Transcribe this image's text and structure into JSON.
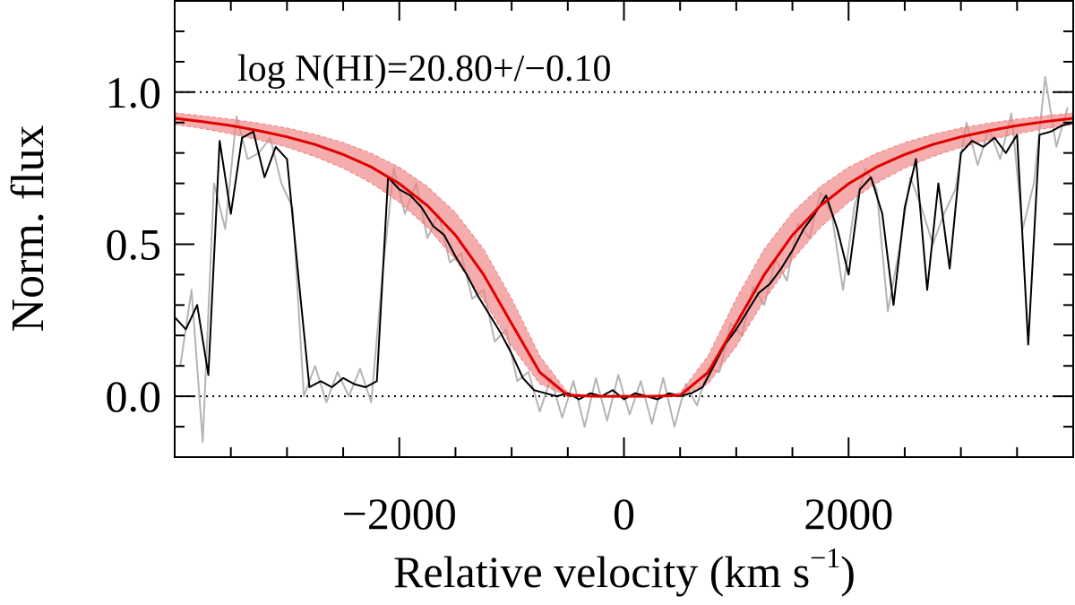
{
  "chart_data": {
    "type": "line",
    "annotation": "log N(HI)=20.80+/−0.10",
    "ylabel": "Norm. flux",
    "xlabel": [
      "Relative velocity (km s",
      "−1",
      ")"
    ],
    "xlim": [
      -4000,
      4000
    ],
    "ylim": [
      -0.2,
      1.3
    ],
    "xticks": [
      {
        "value": -2000,
        "label": "−2000"
      },
      0,
      2000
    ],
    "yticks": [
      {
        "value": 0,
        "label": "0.0"
      },
      {
        "value": 0.5,
        "label": "0.5"
      },
      {
        "value": 1,
        "label": "1.0"
      }
    ],
    "xminorticks": [
      -3500,
      -3000,
      -2500,
      -1500,
      -1000,
      -500,
      500,
      1000,
      1500,
      2500,
      3000,
      3500
    ],
    "yminorticks": [
      -0.1,
      0.1,
      0.2,
      0.3,
      0.4,
      0.6,
      0.7,
      0.8,
      0.9,
      1.1,
      1.2
    ],
    "hlines": [
      0,
      1
    ],
    "series": [
      {
        "color": "#b4b4b4",
        "x": [
          -3950,
          -3850,
          -3750,
          -3650,
          -3550,
          -3450,
          -3350,
          -3250,
          -3150,
          -3050,
          -2950,
          -2850,
          -2750,
          -2650,
          -2550,
          -2450,
          -2350,
          -2250,
          -2150,
          -2050,
          -1950,
          -1850,
          -1750,
          -1650,
          -1550,
          -1450,
          -1350,
          -1250,
          -1150,
          -1050,
          -950,
          -850,
          -750,
          -650,
          -550,
          -450,
          -350,
          -250,
          -150,
          -50,
          50,
          150,
          250,
          350,
          450,
          550,
          650,
          750,
          850,
          950,
          1050,
          1150,
          1250,
          1350,
          1450,
          1550,
          1650,
          1750,
          1850,
          1950,
          2050,
          2150,
          2250,
          2350,
          2450,
          2550,
          2650,
          2750,
          2850,
          2950,
          3050,
          3150,
          3250,
          3350,
          3450,
          3550,
          3650,
          3750,
          3850,
          3950
        ],
        "values": [
          0.1,
          0.35,
          -0.15,
          0.7,
          0.55,
          0.92,
          0.78,
          0.8,
          0.85,
          0.7,
          0.62,
          0.0,
          0.1,
          -0.02,
          0.08,
          0.0,
          0.09,
          -0.02,
          0.4,
          0.75,
          0.6,
          0.7,
          0.52,
          0.6,
          0.44,
          0.47,
          0.32,
          0.35,
          0.18,
          0.22,
          0.05,
          0.08,
          -0.05,
          0.06,
          -0.07,
          0.05,
          -0.1,
          0.06,
          -0.08,
          0.07,
          -0.06,
          0.05,
          -0.09,
          0.06,
          -0.1,
          0.04,
          -0.03,
          0.09,
          0.08,
          0.24,
          0.2,
          0.36,
          0.3,
          0.45,
          0.38,
          0.57,
          0.52,
          0.67,
          0.6,
          0.35,
          0.62,
          0.75,
          0.68,
          0.28,
          0.48,
          0.72,
          0.62,
          0.5,
          0.6,
          0.68,
          0.9,
          0.76,
          0.88,
          0.78,
          0.93,
          0.55,
          0.7,
          1.05,
          0.82,
          0.95
        ]
      },
      {
        "color": "#000000",
        "x": [
          -4000,
          -3900,
          -3800,
          -3700,
          -3600,
          -3500,
          -3400,
          -3300,
          -3200,
          -3100,
          -3000,
          -2900,
          -2800,
          -2700,
          -2600,
          -2500,
          -2400,
          -2300,
          -2200,
          -2100,
          -2000,
          -1900,
          -1800,
          -1700,
          -1600,
          -1500,
          -1400,
          -1300,
          -1200,
          -1100,
          -1000,
          -900,
          -800,
          -700,
          -600,
          -500,
          -400,
          -300,
          -200,
          -100,
          0,
          100,
          200,
          300,
          400,
          500,
          600,
          700,
          800,
          900,
          1000,
          1100,
          1200,
          1300,
          1400,
          1500,
          1600,
          1700,
          1800,
          1900,
          2000,
          2100,
          2200,
          2300,
          2400,
          2500,
          2600,
          2700,
          2800,
          2900,
          3000,
          3100,
          3200,
          3300,
          3400,
          3500,
          3600,
          3700,
          3800,
          3900,
          4000
        ],
        "values": [
          0.26,
          0.22,
          0.3,
          0.07,
          0.84,
          0.6,
          0.85,
          0.87,
          0.72,
          0.82,
          0.78,
          0.4,
          0.03,
          0.05,
          0.03,
          0.06,
          0.04,
          0.03,
          0.05,
          0.72,
          0.68,
          0.66,
          0.62,
          0.56,
          0.53,
          0.46,
          0.4,
          0.33,
          0.27,
          0.21,
          0.14,
          0.06,
          0.02,
          0.01,
          0.0,
          0.01,
          -0.01,
          0.01,
          0.0,
          0.02,
          -0.01,
          0.01,
          0.0,
          -0.01,
          0.01,
          0.0,
          0.01,
          0.03,
          0.1,
          0.17,
          0.22,
          0.28,
          0.34,
          0.37,
          0.42,
          0.48,
          0.55,
          0.6,
          0.66,
          0.55,
          0.4,
          0.68,
          0.72,
          0.6,
          0.3,
          0.62,
          0.78,
          0.35,
          0.7,
          0.42,
          0.8,
          0.84,
          0.82,
          0.85,
          0.8,
          0.86,
          0.17,
          0.86,
          0.87,
          0.89,
          0.9
        ]
      },
      {
        "color": "#e00000",
        "x": [
          -4000,
          -3750,
          -3500,
          -3250,
          -3000,
          -2750,
          -2500,
          -2250,
          -2000,
          -1750,
          -1500,
          -1250,
          -1000,
          -750,
          -500,
          -250,
          0,
          250,
          500,
          750,
          1000,
          1250,
          1500,
          1750,
          2000,
          2250,
          2500,
          2750,
          3000,
          3250,
          3500,
          3750,
          4000
        ],
        "values": [
          0.914,
          0.903,
          0.89,
          0.873,
          0.853,
          0.828,
          0.795,
          0.754,
          0.699,
          0.627,
          0.53,
          0.4,
          0.239,
          0.079,
          0.003,
          0,
          0,
          0,
          0.003,
          0.079,
          0.239,
          0.4,
          0.53,
          0.627,
          0.699,
          0.754,
          0.795,
          0.828,
          0.853,
          0.873,
          0.89,
          0.903,
          0.914
        ]
      }
    ],
    "band": {
      "color": "#f08080",
      "x": [
        -4000,
        -3750,
        -3500,
        -3250,
        -3000,
        -2750,
        -2500,
        -2250,
        -2000,
        -1750,
        -1500,
        -1250,
        -1000,
        -750,
        -500,
        -250,
        0,
        250,
        500,
        750,
        1000,
        1250,
        1500,
        1750,
        2000,
        2250,
        2500,
        2750,
        3000,
        3250,
        3500,
        3750,
        4000
      ],
      "upper": [
        0.932,
        0.922,
        0.911,
        0.898,
        0.882,
        0.861,
        0.834,
        0.799,
        0.753,
        0.69,
        0.604,
        0.484,
        0.321,
        0.133,
        0.011,
        0,
        0,
        0,
        0.011,
        0.133,
        0.321,
        0.484,
        0.604,
        0.69,
        0.753,
        0.799,
        0.834,
        0.861,
        0.882,
        0.898,
        0.911,
        0.922,
        0.932
      ],
      "lower": [
        0.894,
        0.88,
        0.863,
        0.843,
        0.819,
        0.788,
        0.75,
        0.701,
        0.638,
        0.556,
        0.449,
        0.316,
        0.165,
        0.041,
        0.001,
        0,
        0,
        0,
        0.001,
        0.041,
        0.165,
        0.316,
        0.449,
        0.556,
        0.638,
        0.701,
        0.75,
        0.788,
        0.819,
        0.843,
        0.863,
        0.88,
        0.894
      ]
    }
  }
}
